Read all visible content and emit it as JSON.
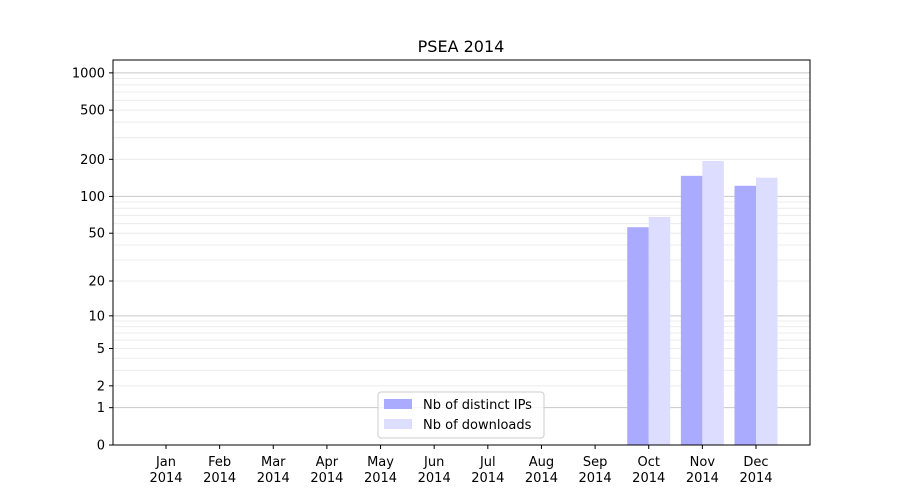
{
  "chart_data": {
    "type": "bar",
    "title": "PSEA 2014",
    "xlabel": "",
    "ylabel": "",
    "yscale": "log(1+y)",
    "ylim": [
      0,
      1270
    ],
    "yticks": [
      0,
      1,
      2,
      5,
      10,
      20,
      50,
      100,
      200,
      500,
      1000
    ],
    "grid": true,
    "legend_position": "lower-center",
    "categories": [
      [
        "Jan",
        "2014"
      ],
      [
        "Feb",
        "2014"
      ],
      [
        "Mar",
        "2014"
      ],
      [
        "Apr",
        "2014"
      ],
      [
        "May",
        "2014"
      ],
      [
        "Jun",
        "2014"
      ],
      [
        "Jul",
        "2014"
      ],
      [
        "Aug",
        "2014"
      ],
      [
        "Sep",
        "2014"
      ],
      [
        "Oct",
        "2014"
      ],
      [
        "Nov",
        "2014"
      ],
      [
        "Dec",
        "2014"
      ]
    ],
    "series": [
      {
        "name": "Nb of distinct IPs",
        "color": "#aaaaff",
        "values": [
          0,
          0,
          0,
          0,
          0,
          0,
          0,
          0,
          0,
          56,
          147,
          122
        ]
      },
      {
        "name": "Nb of downloads",
        "color": "#ddddff",
        "values": [
          0,
          0,
          0,
          0,
          0,
          0,
          0,
          0,
          0,
          68,
          194,
          142
        ]
      }
    ]
  }
}
